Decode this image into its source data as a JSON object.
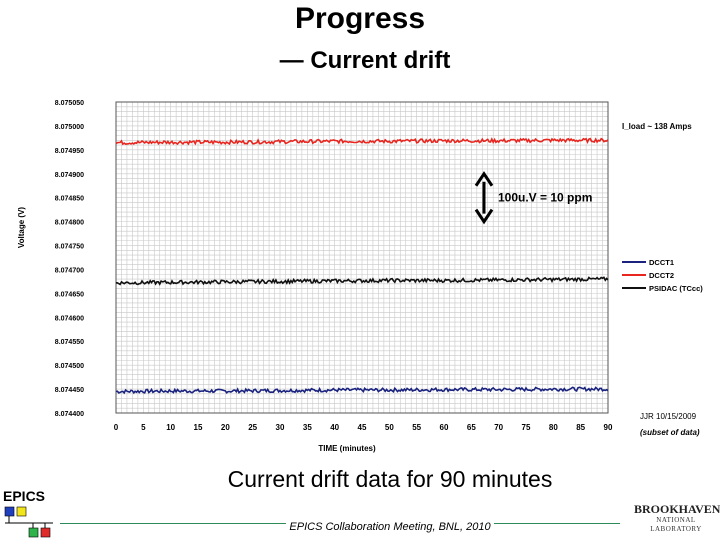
{
  "slide": {
    "title": "Progress",
    "subtitle": "— Current drift",
    "caption": "Current drift data for 90 minutes",
    "footer": "EPICS Collaboration Meeting, BNL, 2010",
    "logos": {
      "epics": "EPICS",
      "bnl_name": "BROOKHAVEN",
      "bnl_sub": "NATIONAL LABORATORY"
    }
  },
  "chart_data": {
    "type": "line",
    "xlabel": "TIME (minutes)",
    "ylabel": "Voltage (V)",
    "xlim": [
      0,
      90
    ],
    "ylim": [
      8.0744,
      8.07505
    ],
    "x_ticks": [
      0,
      5,
      10,
      15,
      20,
      25,
      30,
      35,
      40,
      45,
      50,
      55,
      60,
      65,
      70,
      75,
      80,
      85,
      90
    ],
    "y_ticks": [
      "8.074400",
      "8.074450",
      "8.074500",
      "8.074550",
      "8.074600",
      "8.074650",
      "8.074700",
      "8.074750",
      "8.074800",
      "8.074850",
      "8.074900",
      "8.074950",
      "8.075000",
      "8.075050"
    ],
    "grid": true,
    "legend_position": "right",
    "series": [
      {
        "name": "DCCT1",
        "color": "#1a237e",
        "x": [
          0,
          10,
          20,
          30,
          40,
          50,
          60,
          70,
          80,
          90
        ],
        "y": [
          8.074445,
          8.074446,
          8.074446,
          8.074447,
          8.074448,
          8.074448,
          8.074449,
          8.074449,
          8.07445,
          8.07445
        ]
      },
      {
        "name": "DCCT2",
        "color": "#e8261f",
        "x": [
          0,
          10,
          20,
          30,
          40,
          50,
          60,
          70,
          80,
          90
        ],
        "y": [
          8.074965,
          8.074966,
          8.074966,
          8.074967,
          8.074968,
          8.074968,
          8.074969,
          8.074969,
          8.07497,
          8.07497
        ]
      },
      {
        "name": "PSIDAC (TCcc)",
        "color": "#111111",
        "x": [
          0,
          10,
          20,
          30,
          40,
          50,
          60,
          70,
          80,
          90
        ],
        "y": [
          8.074672,
          8.074673,
          8.074674,
          8.074675,
          8.074676,
          8.074677,
          8.074677,
          8.074678,
          8.074679,
          8.07468
        ]
      }
    ],
    "annotations": {
      "load": "I_load ~ 138 Amps",
      "scale": "100u.V = 10 ppm",
      "author": "JJR 10/15/2009",
      "subset": "(subset of data)"
    }
  }
}
